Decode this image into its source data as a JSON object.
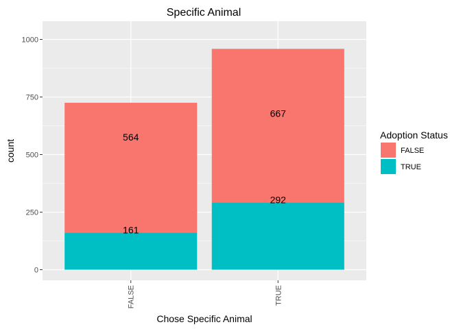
{
  "chart_data": {
    "type": "bar",
    "stacked": true,
    "title": "Specific Animal",
    "xlabel": "Chose Specific Animal",
    "ylabel": "count",
    "categories": [
      "FALSE",
      "TRUE"
    ],
    "ylim": [
      0,
      1068
    ],
    "yticks": [
      0,
      250,
      500,
      750,
      1000
    ],
    "grid": true,
    "legend_title": "Adoption Status",
    "legend_position": "right",
    "series": [
      {
        "name": "TRUE",
        "color": "#00BFC4",
        "values": [
          161,
          292
        ]
      },
      {
        "name": "FALSE",
        "color": "#F8766D",
        "values": [
          564,
          667
        ]
      }
    ],
    "legend_items": [
      {
        "label": "FALSE",
        "color": "#F8766D"
      },
      {
        "label": "TRUE",
        "color": "#00BFC4"
      }
    ],
    "colors": {
      "panel": "#EBEBEB",
      "grid": "#FFFFFF",
      "text": "#000000",
      "axis_text": "#4D4D4D"
    }
  }
}
